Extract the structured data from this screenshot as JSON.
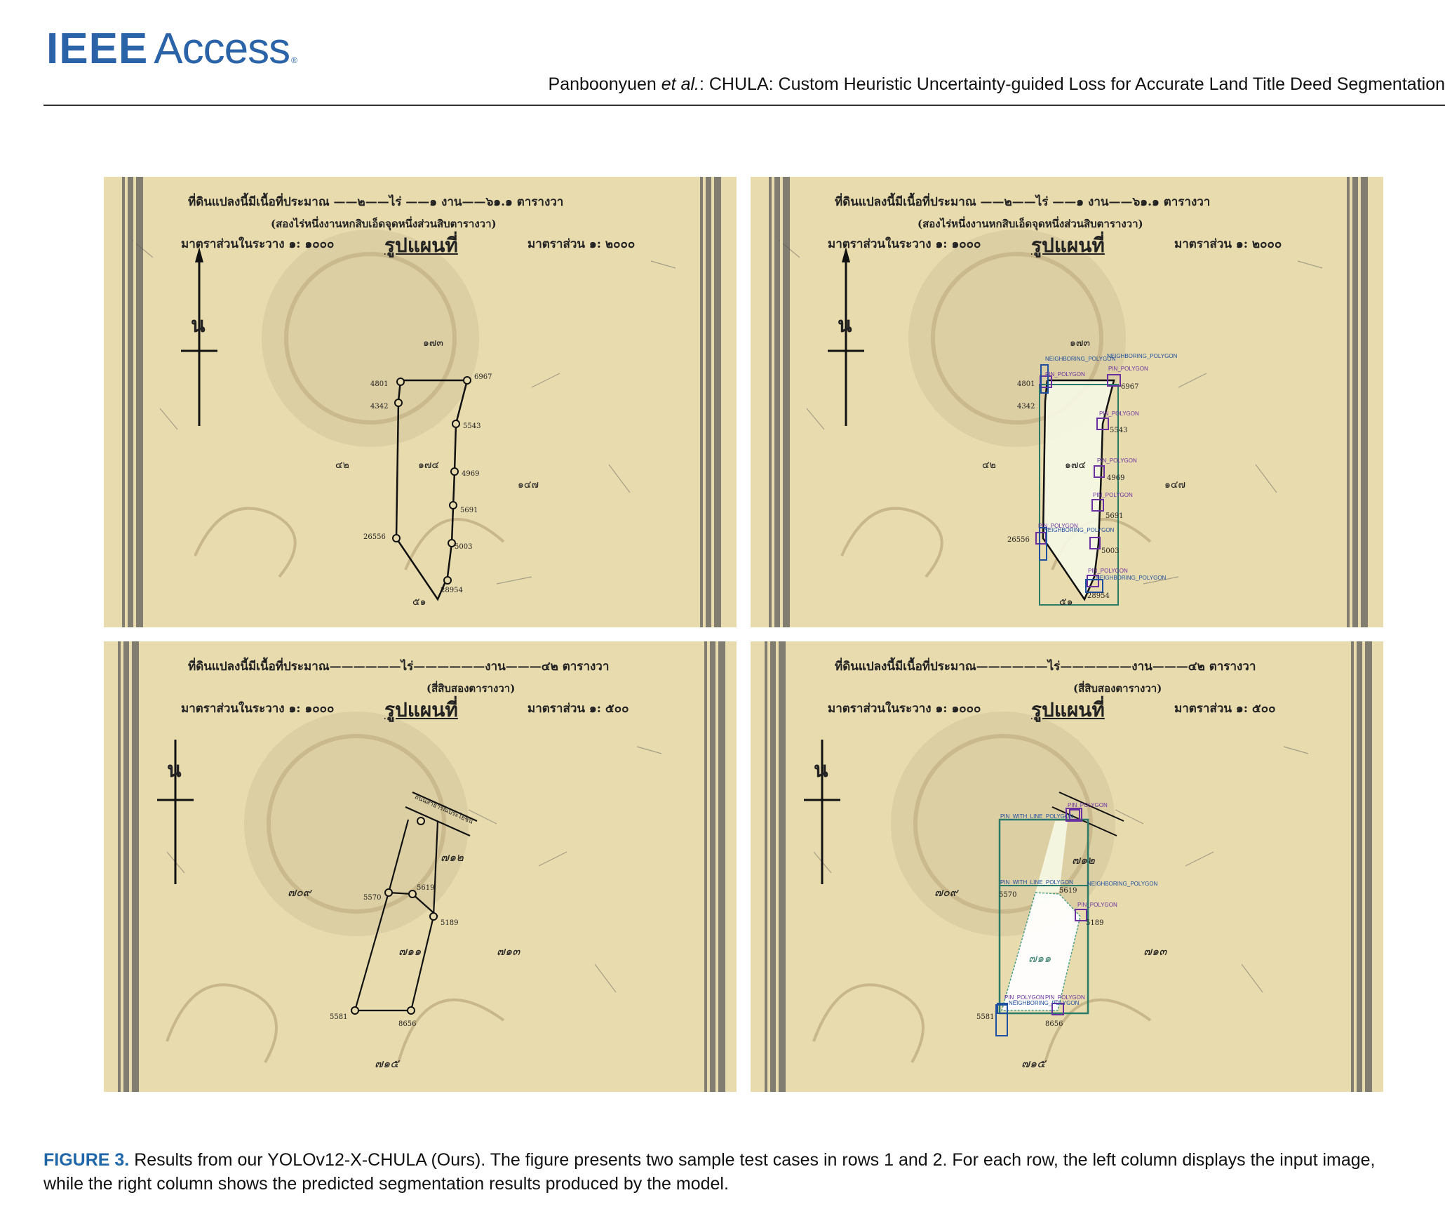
{
  "header": {
    "logo_ieee": "IEEE",
    "logo_access": "Access",
    "logo_tm": "®",
    "running_head_authors": "Panboonyuen ",
    "running_head_etal": "et al.",
    "running_head_title": ": CHULA: Custom Heuristic Uncertainty-guided Loss for Accurate Land Title Deed Segmentation"
  },
  "deed1": {
    "area_line": "ที่ดินแปลงนี้มีเนื้อที่ประมาณ ——๒——ไร่ ——๑ งาน——๖๑.๑ ตารางวา",
    "area_words": "(สองไร่หนึ่งงานหกสิบเอ็ดจุดหนึ่งส่วนสิบตารางวา)",
    "scale_left": "มาตราส่วนในระวาง ๑: ๑๐๐๐",
    "title": "รูปแผนที่",
    "scale_right": "มาตราส่วน ๑: ๒๐๐๐",
    "north": "น",
    "parcel_top": "๑๗๓",
    "parcel_center": "๑๗๔",
    "parcel_left": "๔๒",
    "parcel_right": "๑๔๗",
    "parcel_bottom": "๕๑",
    "pins": [
      "4801",
      "4342",
      "6967",
      "5543",
      "4969",
      "5691",
      "26556",
      "5003",
      "28954"
    ]
  },
  "deed2": {
    "area_line": "ที่ดินแปลงนี้มีเนื้อที่ประมาณ——————ไร่——————งาน———๔๒ ตารางวา",
    "area_words": "(สี่สิบสองตารางวา)",
    "scale_left": "มาตราส่วนในระวาง ๑: ๑๐๐๐",
    "title": "รูปแผนที่",
    "scale_right": "มาตราส่วน ๑: ๕๐๐",
    "north": "น",
    "parcel_center": "๗๑๑",
    "parcel_a": "๗๐๙",
    "parcel_b": "๗๑๒",
    "parcel_c": "๗๑๓",
    "parcel_d": "๗๑๕",
    "pins": [
      "5570",
      "5619",
      "5189",
      "5581",
      "8656"
    ],
    "road_label": "ถนนสาธารณประโยชน์"
  },
  "labels": {
    "pin_polygon": "PIN_POLYGON",
    "neighboring_polygon": "NEIGHBORING_POLYGON",
    "pin_with_line": "PIN_WITH_LINE_POLYGON"
  },
  "caption": {
    "label": "FIGURE 3.",
    "text": " Results from our YOLOv12-X-CHULA (Ours). The figure presents two sample test cases in rows 1 and 2. For each row, the left column displays the input image, while the right column shows the predicted segmentation results produced by the model."
  }
}
